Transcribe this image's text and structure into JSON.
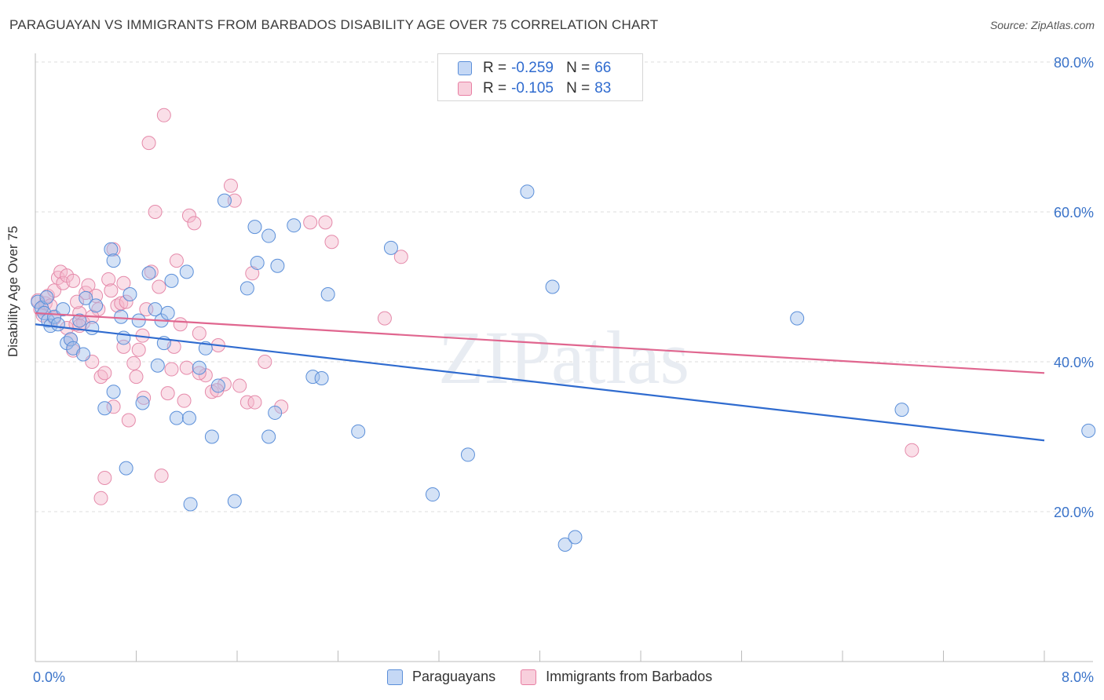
{
  "title": "PARAGUAYAN VS IMMIGRANTS FROM BARBADOS DISABILITY AGE OVER 75 CORRELATION CHART",
  "source": "Source: ZipAtlas.com",
  "watermark": "ZIPatlas",
  "legend": {
    "rows": [
      {
        "r_label": "R =",
        "r_value": "-0.259",
        "n_label": "N =",
        "n_value": "66",
        "color": "#5b8fd9",
        "fill": "#c5d8f5"
      },
      {
        "r_label": "R =",
        "r_value": "-0.105",
        "n_label": "N =",
        "n_value": "83",
        "color": "#e87fa3",
        "fill": "#f8cfdc"
      }
    ]
  },
  "bottom_legend": [
    "Paraguayans",
    "Immigrants from Barbados"
  ],
  "chart_data": {
    "type": "scatter",
    "title": "PARAGUAYAN VS IMMIGRANTS FROM BARBADOS DISABILITY AGE OVER 75 CORRELATION CHART",
    "xlabel": "",
    "ylabel": "Disability Age Over 75",
    "xlim": [
      0,
      8
    ],
    "ylim": [
      0,
      80
    ],
    "x_tick_labels": {
      "left": "0.0%",
      "right": "8.0%"
    },
    "y_ticks": [
      {
        "value": 20,
        "label": "20.0%"
      },
      {
        "value": 40,
        "label": "40.0%"
      },
      {
        "value": 60,
        "label": "60.0%"
      },
      {
        "value": 80,
        "label": "80.0%"
      }
    ],
    "series": [
      {
        "name": "Paraguayans",
        "color": "#2f6bcf",
        "trend": {
          "x": [
            0,
            8
          ],
          "y": [
            45.0,
            29.5
          ]
        },
        "points": [
          [
            0.02,
            48.0
          ],
          [
            0.05,
            47.2
          ],
          [
            0.07,
            46.5
          ],
          [
            0.1,
            45.5
          ],
          [
            0.12,
            44.8
          ],
          [
            0.15,
            46.0
          ],
          [
            0.18,
            45.0
          ],
          [
            0.22,
            47.0
          ],
          [
            0.25,
            42.5
          ],
          [
            0.28,
            43.0
          ],
          [
            0.3,
            41.8
          ],
          [
            0.35,
            45.5
          ],
          [
            0.4,
            48.5
          ],
          [
            0.45,
            44.5
          ],
          [
            0.48,
            47.5
          ],
          [
            0.55,
            33.8
          ],
          [
            0.6,
            55.0
          ],
          [
            0.62,
            53.5
          ],
          [
            0.68,
            46.0
          ],
          [
            0.7,
            43.2
          ],
          [
            0.75,
            49.0
          ],
          [
            0.82,
            45.5
          ],
          [
            0.85,
            34.5
          ],
          [
            0.9,
            51.8
          ],
          [
            0.95,
            47.0
          ],
          [
            0.97,
            39.5
          ],
          [
            1.0,
            45.5
          ],
          [
            1.02,
            42.5
          ],
          [
            1.05,
            46.5
          ],
          [
            1.08,
            50.8
          ],
          [
            1.12,
            32.5
          ],
          [
            1.2,
            52.0
          ],
          [
            1.22,
            32.5
          ],
          [
            1.3,
            39.2
          ],
          [
            1.35,
            41.8
          ],
          [
            1.4,
            30.0
          ],
          [
            1.45,
            36.8
          ],
          [
            1.5,
            61.5
          ],
          [
            1.58,
            21.4
          ],
          [
            1.68,
            49.8
          ],
          [
            1.74,
            58.0
          ],
          [
            1.76,
            53.2
          ],
          [
            1.85,
            56.8
          ],
          [
            1.9,
            33.2
          ],
          [
            1.92,
            52.8
          ],
          [
            2.05,
            58.2
          ],
          [
            2.2,
            38.0
          ],
          [
            2.32,
            49.0
          ],
          [
            2.56,
            30.7
          ],
          [
            2.82,
            55.2
          ],
          [
            3.15,
            22.3
          ],
          [
            3.43,
            27.6
          ],
          [
            3.9,
            62.7
          ],
          [
            4.1,
            50.0
          ],
          [
            4.2,
            15.6
          ],
          [
            4.28,
            16.6
          ],
          [
            6.04,
            45.8
          ],
          [
            6.87,
            33.6
          ],
          [
            8.35,
            30.8
          ],
          [
            0.72,
            25.8
          ],
          [
            1.23,
            21.0
          ],
          [
            1.85,
            30.0
          ],
          [
            2.27,
            37.8
          ],
          [
            0.38,
            41.0
          ],
          [
            0.62,
            36.0
          ],
          [
            0.09,
            48.6
          ]
        ]
      },
      {
        "name": "Immigrants from Barbados",
        "color": "#e0668f",
        "trend": {
          "x": [
            0,
            8
          ],
          "y": [
            46.5,
            38.5
          ]
        },
        "points": [
          [
            0.02,
            48.2
          ],
          [
            0.04,
            47.0
          ],
          [
            0.06,
            46.2
          ],
          [
            0.08,
            47.8
          ],
          [
            0.1,
            48.8
          ],
          [
            0.12,
            47.5
          ],
          [
            0.15,
            49.5
          ],
          [
            0.18,
            51.2
          ],
          [
            0.2,
            52.0
          ],
          [
            0.22,
            50.5
          ],
          [
            0.25,
            44.5
          ],
          [
            0.28,
            43.0
          ],
          [
            0.3,
            41.5
          ],
          [
            0.32,
            45.0
          ],
          [
            0.35,
            46.5
          ],
          [
            0.38,
            45.2
          ],
          [
            0.4,
            49.2
          ],
          [
            0.42,
            50.2
          ],
          [
            0.45,
            40.0
          ],
          [
            0.48,
            48.8
          ],
          [
            0.5,
            47.0
          ],
          [
            0.52,
            38.0
          ],
          [
            0.55,
            38.5
          ],
          [
            0.58,
            51.0
          ],
          [
            0.62,
            55.0
          ],
          [
            0.65,
            47.5
          ],
          [
            0.68,
            47.8
          ],
          [
            0.7,
            42.0
          ],
          [
            0.72,
            48.0
          ],
          [
            0.74,
            32.2
          ],
          [
            0.78,
            39.8
          ],
          [
            0.8,
            38.0
          ],
          [
            0.82,
            41.6
          ],
          [
            0.86,
            35.2
          ],
          [
            0.9,
            69.2
          ],
          [
            0.92,
            52.0
          ],
          [
            0.95,
            60.0
          ],
          [
            0.98,
            50.0
          ],
          [
            1.0,
            24.8
          ],
          [
            1.02,
            72.9
          ],
          [
            1.05,
            35.8
          ],
          [
            1.08,
            39.0
          ],
          [
            1.12,
            53.5
          ],
          [
            1.15,
            45.0
          ],
          [
            1.18,
            34.8
          ],
          [
            1.22,
            59.5
          ],
          [
            1.26,
            58.5
          ],
          [
            1.3,
            43.8
          ],
          [
            1.35,
            38.2
          ],
          [
            1.4,
            36.0
          ],
          [
            1.45,
            42.2
          ],
          [
            1.5,
            37.0
          ],
          [
            1.55,
            63.5
          ],
          [
            1.58,
            61.5
          ],
          [
            1.62,
            36.8
          ],
          [
            1.68,
            34.6
          ],
          [
            1.72,
            51.8
          ],
          [
            1.74,
            34.6
          ],
          [
            1.82,
            40.0
          ],
          [
            1.95,
            34.0
          ],
          [
            2.18,
            58.6
          ],
          [
            2.3,
            58.6
          ],
          [
            2.35,
            56.0
          ],
          [
            2.77,
            45.8
          ],
          [
            2.9,
            54.0
          ],
          [
            6.95,
            28.2
          ],
          [
            0.55,
            24.5
          ],
          [
            0.52,
            21.8
          ],
          [
            0.6,
            49.5
          ],
          [
            0.45,
            46.0
          ],
          [
            0.35,
            44.8
          ],
          [
            0.7,
            50.5
          ],
          [
            1.1,
            42.0
          ],
          [
            0.15,
            45.8
          ],
          [
            0.25,
            51.5
          ],
          [
            0.33,
            48.0
          ],
          [
            1.3,
            38.5
          ],
          [
            1.44,
            36.2
          ],
          [
            0.88,
            47.0
          ],
          [
            1.2,
            39.2
          ],
          [
            0.3,
            50.8
          ],
          [
            0.85,
            43.5
          ],
          [
            0.62,
            34.0
          ]
        ]
      }
    ]
  }
}
